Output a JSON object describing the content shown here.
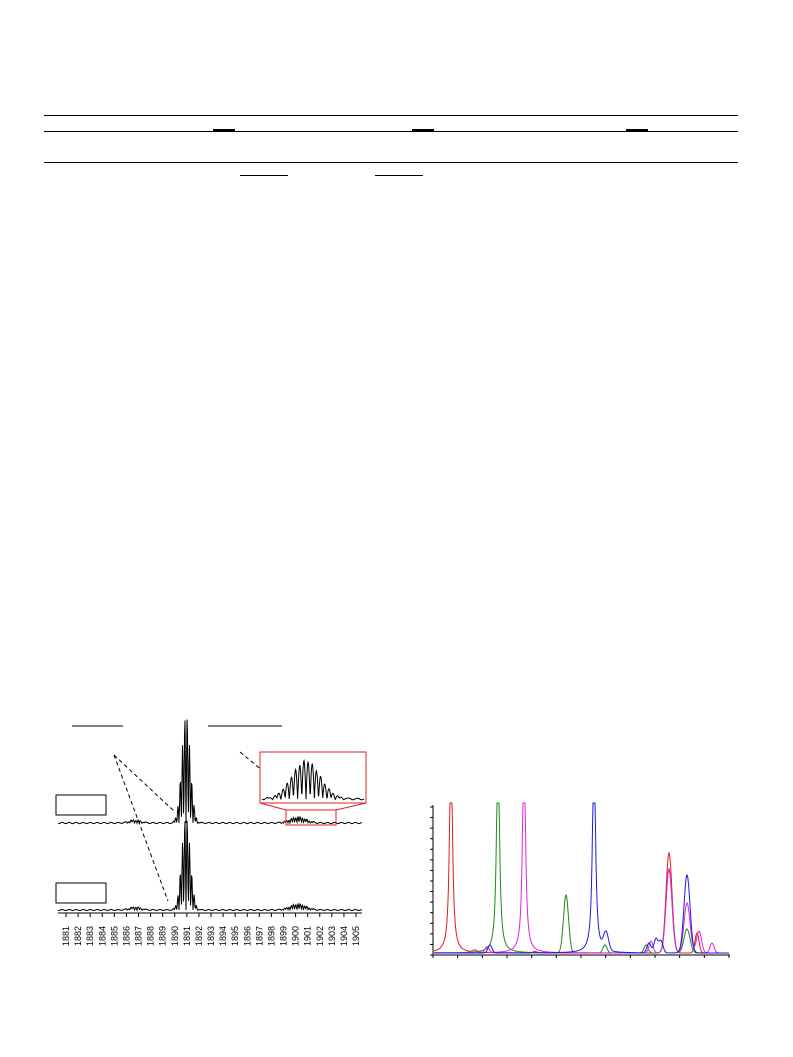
{
  "table": {
    "colors": {
      "rule": "#000000"
    }
  },
  "figure_left": {
    "chart_data": {
      "type": "line",
      "x_tick_labels": [
        "1881",
        "1882",
        "1883",
        "1884",
        "1885",
        "1886",
        "1887",
        "1888",
        "1889",
        "1890",
        "1891",
        "1892",
        "1893",
        "1894",
        "1895",
        "1896",
        "1897",
        "1898",
        "1899",
        "1900",
        "1901",
        "1902",
        "1903",
        "1904",
        "1905"
      ],
      "series": [
        {
          "color": "#000000",
          "role": "upper-spectrum"
        },
        {
          "color": "#000000",
          "role": "lower-spectrum"
        }
      ],
      "inset_color": "#e02020",
      "grid": false
    }
  },
  "figure_right": {
    "chart_data": {
      "type": "line",
      "series": [
        {
          "color": "#e41a1c"
        },
        {
          "color": "#1a8c1a"
        },
        {
          "color": "#e61ee6"
        },
        {
          "color": "#1a1ae6"
        }
      ],
      "grid": false
    }
  }
}
